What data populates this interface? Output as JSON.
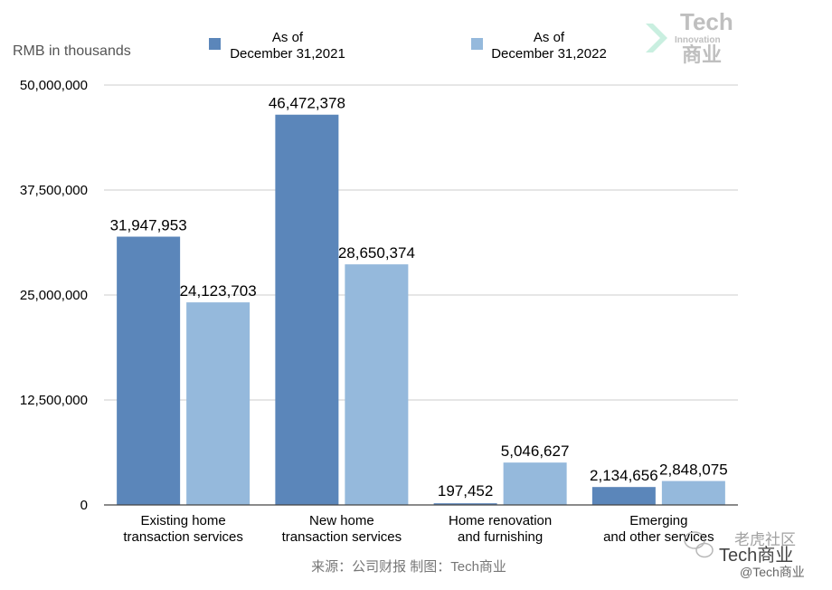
{
  "chart_data": {
    "type": "bar",
    "unit_label": "RMB in thousands",
    "categories": [
      [
        "Existing home",
        "transaction services"
      ],
      [
        "New home",
        "transaction services"
      ],
      [
        "Home renovation",
        "and furnishing"
      ],
      [
        "Emerging",
        "and other services"
      ]
    ],
    "series": [
      {
        "name": [
          "As of",
          "December 31,2021"
        ],
        "color": "#5b86ba",
        "values": [
          31947953,
          46472378,
          197452,
          2134656
        ],
        "labels": [
          "31,947,953",
          "46,472,378",
          "197,452",
          "2,134,656"
        ]
      },
      {
        "name": [
          "As of",
          "December 31,2022"
        ],
        "color": "#95b9dc",
        "values": [
          24123703,
          28650374,
          5046627,
          2848075
        ],
        "labels": [
          "24,123,703",
          "28,650,374",
          "5,046,627",
          "2,848,075"
        ]
      }
    ],
    "ylim": [
      0,
      50000000
    ],
    "yticks": [
      0,
      12500000,
      25000000,
      37500000,
      50000000
    ],
    "ytick_labels": [
      "0",
      "12,500,000",
      "25,000,000",
      "37,500,000",
      "50,000,000"
    ],
    "grid": true,
    "legend_position": "top"
  },
  "source_text": "来源：公司财报 制图：Tech商业",
  "watermark": {
    "logo_line1": "Tech",
    "logo_line2": "Innovation",
    "logo_line3": "商业",
    "community": "老虎社区",
    "account": "Tech商业",
    "handle": "@Tech商业"
  }
}
